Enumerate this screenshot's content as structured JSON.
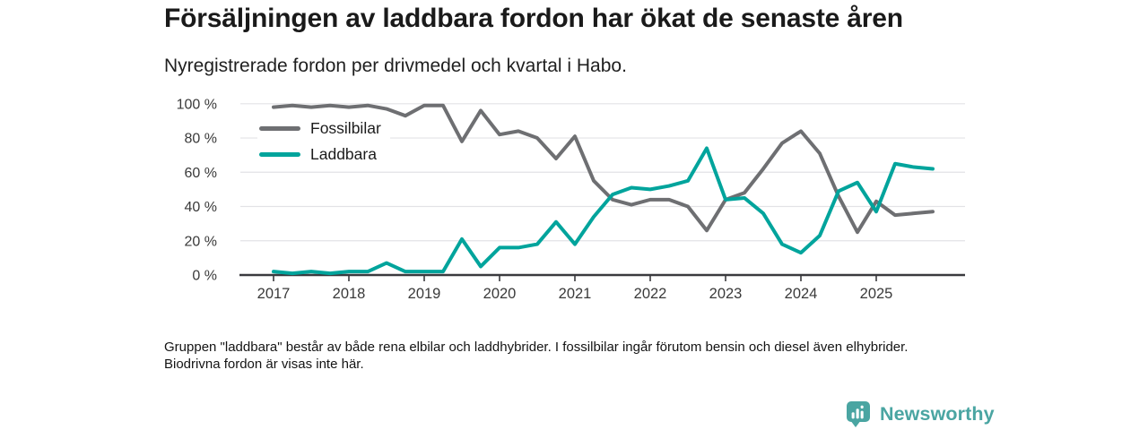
{
  "header": {
    "title": "Försäljningen av laddbara fordon har ökat de senaste åren",
    "subtitle": "Nyregistrerade fordon per drivmedel och kvartal i Habo."
  },
  "chart_data": {
    "type": "line",
    "x": [
      "2017 K1",
      "2017 K2",
      "2017 K3",
      "2017 K4",
      "2018 K1",
      "2018 K2",
      "2018 K3",
      "2018 K4",
      "2019 K1",
      "2019 K2",
      "2019 K3",
      "2019 K4",
      "2020 K1",
      "2020 K2",
      "2020 K3",
      "2020 K4",
      "2021 K1",
      "2021 K2",
      "2021 K3",
      "2021 K4",
      "2022 K1",
      "2022 K2",
      "2022 K3",
      "2022 K4",
      "2023 K1",
      "2023 K2",
      "2023 K3",
      "2023 K4",
      "2024 K1",
      "2024 K2",
      "2024 K3",
      "2024 K4",
      "2025 K1",
      "2025 K2",
      "2025 K3",
      "2025 K4"
    ],
    "series": [
      {
        "name": "Fossilbilar",
        "color": "#6e6f72",
        "values": [
          98,
          99,
          98,
          99,
          98,
          99,
          97,
          93,
          99,
          99,
          78,
          96,
          82,
          84,
          80,
          68,
          81,
          55,
          44,
          41,
          44,
          44,
          40,
          26,
          44,
          48,
          62,
          77,
          84,
          71,
          46,
          25,
          43,
          35,
          36,
          37
        ]
      },
      {
        "name": "Laddbara",
        "color": "#00a49c",
        "values": [
          2,
          1,
          2,
          1,
          2,
          2,
          7,
          2,
          2,
          2,
          21,
          5,
          16,
          16,
          18,
          31,
          18,
          34,
          47,
          51,
          50,
          52,
          55,
          74,
          44,
          45,
          36,
          18,
          13,
          23,
          49,
          54,
          37,
          65,
          63,
          62
        ]
      }
    ],
    "ylim": [
      0,
      100
    ],
    "yticks": [
      0,
      20,
      40,
      60,
      80,
      100
    ],
    "ytick_suffix": " %",
    "xticks": [
      "2017",
      "2018",
      "2019",
      "2020",
      "2021",
      "2022",
      "2023",
      "2024",
      "2025"
    ],
    "grid": "horizontal",
    "legend_position": "inside-top-left"
  },
  "footer": {
    "note": "Gruppen \"laddbara\" består av både rena elbilar och laddhybrider. I fossilbilar ingår förutom bensin och diesel även elhybrider. Biodrivna fordon är visas inte här."
  },
  "logo": {
    "text": "Newsworthy",
    "icon": "newsworthy-pin-barchart-icon",
    "color": "#4aa5a2"
  }
}
